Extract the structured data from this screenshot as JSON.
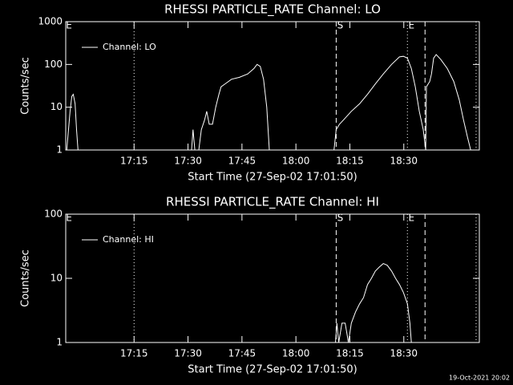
{
  "chart_data": [
    {
      "type": "line",
      "title": "RHESSI PARTICLE_RATE Channel: LO",
      "xlabel": "Start Time (27-Sep-02 17:01:50)",
      "ylabel": "Counts/sec",
      "log_y": true,
      "legend": "upper left",
      "xlim": [
        1016,
        1131
      ],
      "ylim": [
        1,
        1000
      ],
      "xticks": [
        {
          "value": 1035,
          "label": "17:15"
        },
        {
          "value": 1050,
          "label": "17:30"
        },
        {
          "value": 1065,
          "label": "17:45"
        },
        {
          "value": 1080,
          "label": "18:00"
        },
        {
          "value": 1095,
          "label": "18:15"
        },
        {
          "value": 1110,
          "label": "18:30"
        }
      ],
      "yticks": [
        1,
        10,
        100,
        1000
      ],
      "vlines": [
        {
          "x": 1035,
          "style": "dotted"
        },
        {
          "x": 1091.2,
          "style": "dashed",
          "label": "S"
        },
        {
          "x": 1111,
          "style": "dotted",
          "label": "E"
        },
        {
          "x": 1115.9,
          "style": "dashed"
        },
        {
          "x": 1130.1,
          "style": "dotted"
        }
      ],
      "corner_label": "E",
      "series": [
        {
          "name": "Channel: LO",
          "color": "#ffffff",
          "x": [
            1016.3,
            1017.2,
            1017.7,
            1018.1,
            1018.6,
            1019,
            1019.4,
            1030,
            1051,
            1051.4,
            1051.9,
            1052.5,
            1053,
            1053.7,
            1054.6,
            1055.2,
            1055.9,
            1056.8,
            1057.7,
            1058.6,
            1059.2,
            1060.3,
            1062.1,
            1064.3,
            1066.6,
            1068.3,
            1069.2,
            1070.1,
            1071,
            1071.9,
            1072.6,
            1080,
            1090.6,
            1091.2,
            1092.1,
            1093.2,
            1095.4,
            1097.7,
            1099.9,
            1102.1,
            1104.3,
            1106.6,
            1108.8,
            1109.9,
            1111,
            1112.1,
            1113.2,
            1114.3,
            1115.4,
            1116.1,
            1116.3,
            1117.2,
            1117.7,
            1118.3,
            1119,
            1120.3,
            1122.1,
            1123.9,
            1125.4,
            1126.6,
            1127.7,
            1128.6
          ],
          "values": [
            1,
            8,
            18,
            20,
            12,
            3,
            1,
            null,
            1,
            3,
            1,
            null,
            1,
            3,
            5,
            8,
            4,
            4,
            10,
            20,
            30,
            35,
            45,
            50,
            60,
            80,
            100,
            90,
            45,
            10,
            1,
            null,
            1,
            3,
            4,
            5,
            8,
            12,
            20,
            35,
            60,
            100,
            150,
            155,
            140,
            80,
            30,
            8,
            3,
            1,
            30,
            40,
            60,
            140,
            170,
            130,
            80,
            40,
            15,
            5,
            2,
            1
          ]
        }
      ]
    },
    {
      "type": "line",
      "title": "RHESSI PARTICLE_RATE Channel: HI",
      "xlabel": "Start Time (27-Sep-02 17:01:50)",
      "ylabel": "Counts/sec",
      "log_y": true,
      "legend": "upper left",
      "xlim": [
        1016,
        1131
      ],
      "ylim": [
        1,
        100
      ],
      "xticks": [
        {
          "value": 1035,
          "label": "17:15"
        },
        {
          "value": 1050,
          "label": "17:30"
        },
        {
          "value": 1065,
          "label": "17:45"
        },
        {
          "value": 1080,
          "label": "18:00"
        },
        {
          "value": 1095,
          "label": "18:15"
        },
        {
          "value": 1110,
          "label": "18:30"
        }
      ],
      "yticks": [
        1,
        10,
        100
      ],
      "vlines": [
        {
          "x": 1035,
          "style": "dotted"
        },
        {
          "x": 1091.2,
          "style": "dashed",
          "label": "S"
        },
        {
          "x": 1111,
          "style": "dotted",
          "label": "E"
        },
        {
          "x": 1115.9,
          "style": "dashed"
        },
        {
          "x": 1130.1,
          "style": "dotted"
        }
      ],
      "corner_label": "E",
      "series": [
        {
          "name": "Channel: HI",
          "color": "#ffffff",
          "x": [
            1091,
            1091.4,
            1091.9,
            1092.8,
            1093.7,
            1094.6,
            1095.4,
            1096.6,
            1097.7,
            1098.8,
            1099.9,
            1101,
            1102.1,
            1103.2,
            1104.3,
            1105.4,
            1106.6,
            1107.7,
            1108.8,
            1109.9,
            1111,
            1111.7,
            1112.1
          ],
          "values": [
            1,
            2,
            1,
            2,
            2,
            1,
            2,
            3,
            4,
            5,
            8,
            10,
            13,
            15,
            17,
            16,
            13,
            10,
            8,
            6,
            4,
            2,
            1
          ]
        }
      ]
    }
  ],
  "footer": "19-Oct-2021 20:02"
}
